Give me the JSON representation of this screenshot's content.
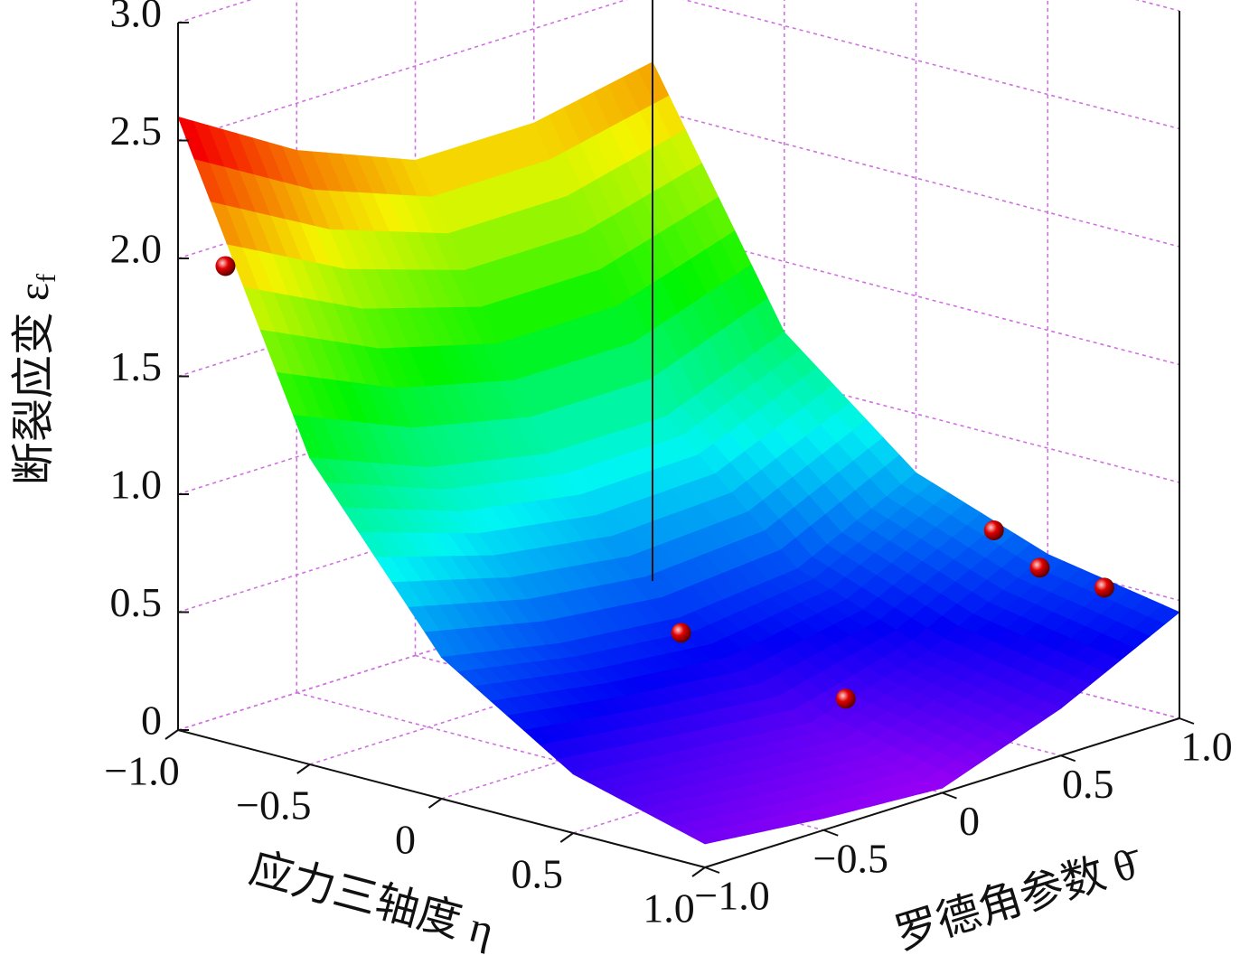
{
  "chart_data": {
    "type": "surface3d",
    "x_label": "应力三轴度 η",
    "y_label": "罗德角参数 θ̄",
    "z_label": "断裂应变 ε",
    "z_label_subscript": "f",
    "x": [
      -1,
      -0.5,
      0,
      0.5,
      1
    ],
    "y": [
      -1,
      -0.5,
      0,
      0.5,
      1
    ],
    "z": [
      [
        2.6,
        1.3,
        0.6,
        0.25,
        0.1
      ],
      [
        2.3,
        1.1,
        0.5,
        0.2,
        0.05
      ],
      [
        2.1,
        1.0,
        0.45,
        0.15,
        0.02
      ],
      [
        2.1,
        1.0,
        0.5,
        0.3,
        0.2
      ],
      [
        2.2,
        1.2,
        0.75,
        0.55,
        0.45
      ]
    ],
    "points": {
      "x": [
        -0.82,
        0.18,
        0.49,
        0.62,
        0.65,
        0.76
      ],
      "y": [
        -1,
        -0.19,
        0.16,
        0.64,
        0.8,
        0.95
      ],
      "z": [
        2.02,
        0.5,
        0.2,
        0.8,
        0.6,
        0.5
      ],
      "color": "#e00000"
    },
    "xlim": [
      -1,
      1
    ],
    "ylim": [
      -1,
      1
    ],
    "zlim": [
      0,
      3
    ],
    "xticks": [
      {
        "value": -1,
        "label": "−1.0"
      },
      {
        "value": -0.5,
        "label": "−0.5"
      },
      0,
      0.5,
      {
        "value": 1,
        "label": "1.0"
      }
    ],
    "yticks": [
      {
        "value": -1,
        "label": "−1.0"
      },
      {
        "value": -0.5,
        "label": "−0.5"
      },
      0,
      0.5,
      {
        "value": 1,
        "label": "1.0"
      }
    ],
    "zticks": [
      0,
      0.5,
      {
        "value": 1,
        "label": "1.0"
      },
      1.5,
      {
        "value": 2,
        "label": "2.0"
      },
      2.5,
      {
        "value": 3,
        "label": "3.0"
      }
    ],
    "grid": true,
    "grid_color": "#d070e0"
  }
}
